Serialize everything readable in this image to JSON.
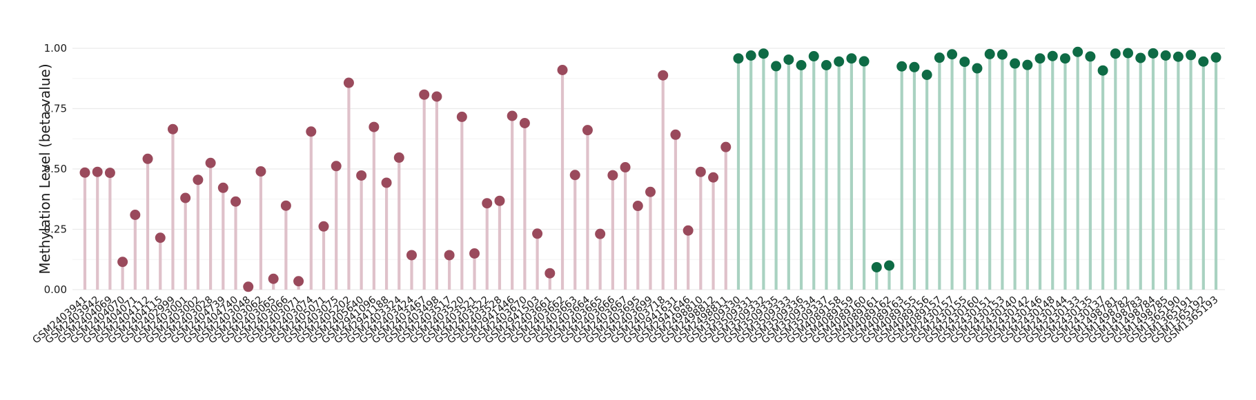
{
  "chart_data": {
    "type": "lollipop",
    "title": "",
    "xlabel": "",
    "ylabel": "Methylation Level (beta value)",
    "ylim": [
      0,
      1
    ],
    "yticks": [
      0,
      0.25,
      0.5,
      0.75,
      1
    ],
    "ytick_labels": [
      "0.00",
      "0.25",
      "0.50",
      "0.75",
      "1.00"
    ],
    "grid": true,
    "legend": "none",
    "groups": [
      {
        "color": "#9a4a5c",
        "stem_color": "#dfc1ca"
      },
      {
        "color": "#0e6b45",
        "stem_color": "#a9d2c1"
      }
    ],
    "samples": [
      "GSM2403941",
      "GSM2403942",
      "GSM2404069",
      "GSM2404070",
      "GSM2404071",
      "GSM2404112",
      "GSM2404115",
      "GSM2402999",
      "GSM2403001",
      "GSM2403002",
      "GSM2403028",
      "GSM2404739",
      "GSM2404740",
      "GSM2403048",
      "GSM2403062",
      "GSM2403065",
      "GSM2403066",
      "GSM2403071",
      "GSM2403074",
      "GSM2405071",
      "GSM2403075",
      "GSM2405202",
      "GSM2405640",
      "GSM2941096",
      "GSM2941188",
      "GSM2403324",
      "GSM2403424",
      "GSM2403467",
      "GSM2403498",
      "GSM2403517",
      "GSM2403520",
      "GSM2403521",
      "GSM2403522",
      "GSM2403528",
      "GSM2941446",
      "GSM2403670",
      "GSM2941503",
      "GSM2403661",
      "GSM2403662",
      "GSM2403663",
      "GSM2403664",
      "GSM2403665",
      "GSM2403666",
      "GSM2403667",
      "GSM2403695",
      "GSM2403699",
      "GSM2403718",
      "GSM2941631",
      "GSM2941646",
      "GSM2498810",
      "GSM2498812",
      "GSM2498811",
      "GSM3509330",
      "GSM3509331",
      "GSM3509332",
      "GSM3509335",
      "GSM3509333",
      "GSM3509336",
      "GSM3509334",
      "GSM3509337",
      "GSM4089158",
      "GSM4089159",
      "GSM4089160",
      "GSM4089161",
      "GSM4089162",
      "GSM4089163",
      "GSM4089155",
      "GSM4089156",
      "GSM4089157",
      "GSM2430157",
      "GSM2430155",
      "GSM2430160",
      "GSM2430151",
      "GSM2430153",
      "GSM2430140",
      "GSM2430142",
      "GSM2430146",
      "GSM2430148",
      "GSM2430144",
      "GSM2430133",
      "GSM2430135",
      "GSM2430137",
      "GSM1498781",
      "GSM1498782",
      "GSM1498783",
      "GSM1498784",
      "GSM1498785",
      "GSM1365190",
      "GSM1365191",
      "GSM1365192",
      "GSM1365193"
    ],
    "values": [
      0.485,
      0.488,
      0.484,
      0.115,
      0.31,
      0.542,
      0.215,
      0.665,
      0.38,
      0.455,
      0.525,
      0.422,
      0.365,
      0.012,
      0.49,
      0.045,
      0.348,
      0.035,
      0.655,
      0.262,
      0.512,
      0.857,
      0.473,
      0.674,
      0.443,
      0.547,
      0.143,
      0.808,
      0.8,
      0.143,
      0.716,
      0.15,
      0.358,
      0.368,
      0.72,
      0.69,
      0.232,
      0.068,
      0.91,
      0.475,
      0.661,
      0.231,
      0.474,
      0.507,
      0.347,
      0.405,
      0.888,
      0.642,
      0.245,
      0.488,
      0.465,
      0.591,
      0.958,
      0.97,
      0.978,
      0.926,
      0.953,
      0.93,
      0.967,
      0.93,
      0.945,
      0.958,
      0.946,
      0.093,
      0.1,
      0.925,
      0.922,
      0.89,
      0.961,
      0.975,
      0.944,
      0.917,
      0.976,
      0.974,
      0.937,
      0.931,
      0.958,
      0.968,
      0.958,
      0.985,
      0.966,
      0.908,
      0.978,
      0.98,
      0.96,
      0.979,
      0.97,
      0.965,
      0.972,
      0.945,
      0.962
    ],
    "group_index": [
      0,
      0,
      0,
      0,
      0,
      0,
      0,
      0,
      0,
      0,
      0,
      0,
      0,
      0,
      0,
      0,
      0,
      0,
      0,
      0,
      0,
      0,
      0,
      0,
      0,
      0,
      0,
      0,
      0,
      0,
      0,
      0,
      0,
      0,
      0,
      0,
      0,
      0,
      0,
      0,
      0,
      0,
      0,
      0,
      0,
      0,
      0,
      0,
      0,
      0,
      0,
      0,
      1,
      1,
      1,
      1,
      1,
      1,
      1,
      1,
      1,
      1,
      1,
      1,
      1,
      1,
      1,
      1,
      1,
      1,
      1,
      1,
      1,
      1,
      1,
      1,
      1,
      1,
      1,
      1,
      1,
      1,
      1,
      1,
      1,
      1,
      1,
      1,
      1,
      1,
      1
    ]
  }
}
